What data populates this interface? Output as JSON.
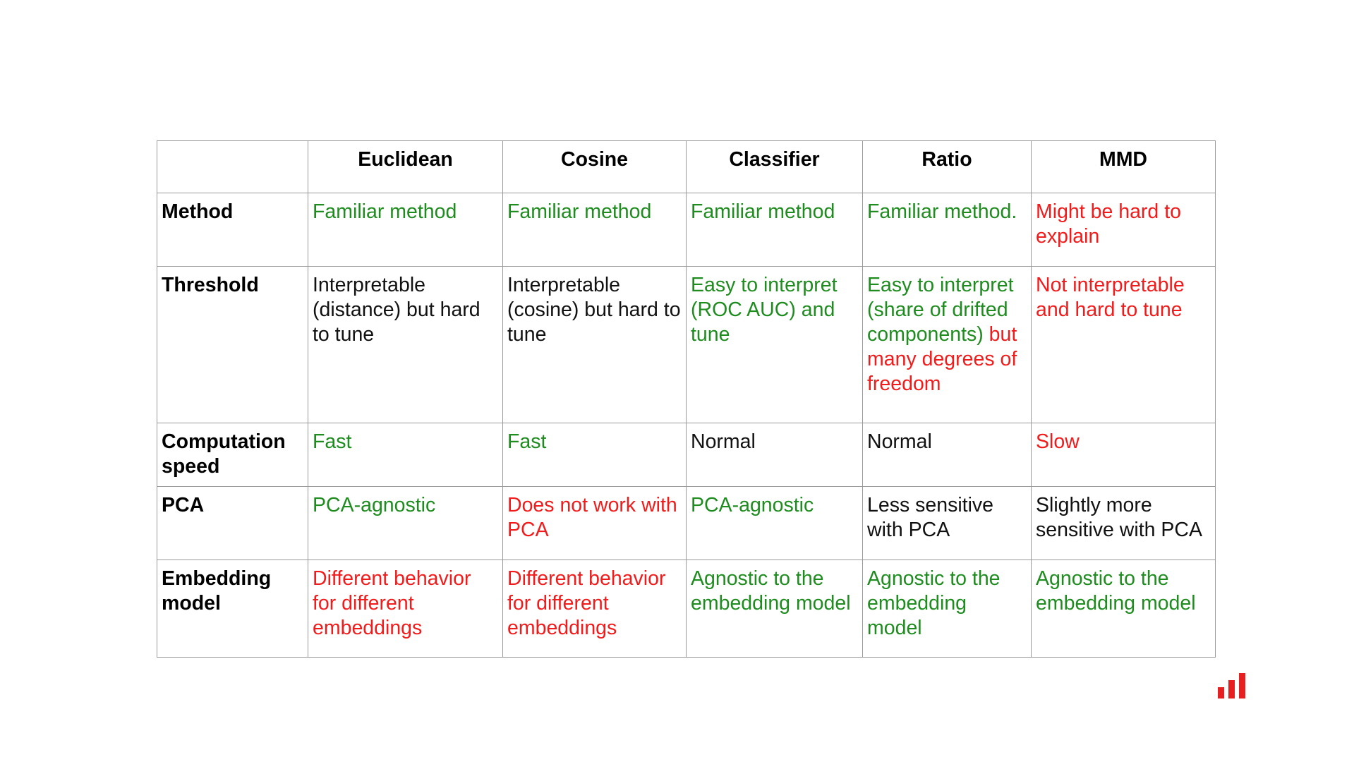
{
  "colors": {
    "positive": "#1e8c1e",
    "negative": "#f21b1b",
    "neutral": "#111111",
    "logo": "#e62020"
  },
  "table": {
    "corner": "",
    "columns": [
      "Euclidean",
      "Cosine",
      "Classifier",
      "Ratio",
      "MMD"
    ],
    "rows": [
      {
        "label": "Method",
        "cells": [
          [
            {
              "text": "Familiar method",
              "tone": "green"
            }
          ],
          [
            {
              "text": "Familiar method",
              "tone": "green"
            }
          ],
          [
            {
              "text": "Familiar method",
              "tone": "green"
            }
          ],
          [
            {
              "text": "Familiar method.",
              "tone": "green"
            }
          ],
          [
            {
              "text": "Might be hard to explain",
              "tone": "red"
            }
          ]
        ]
      },
      {
        "label": "Threshold",
        "cells": [
          [
            {
              "text": "Interpretable (distance) but hard to tune",
              "tone": "black"
            }
          ],
          [
            {
              "text": "Interpretable (cosine) but hard to tune",
              "tone": "black"
            }
          ],
          [
            {
              "text": "Easy to interpret (ROC AUC) and tune",
              "tone": "green"
            }
          ],
          [
            {
              "text": "Easy to interpret (share of drifted components)",
              "tone": "green"
            },
            {
              "text": " but many degrees of freedom",
              "tone": "red"
            }
          ],
          [
            {
              "text": "Not interpretable and hard to tune",
              "tone": "red"
            }
          ]
        ]
      },
      {
        "label": "Computation speed",
        "cells": [
          [
            {
              "text": "Fast",
              "tone": "green"
            }
          ],
          [
            {
              "text": "Fast",
              "tone": "green"
            }
          ],
          [
            {
              "text": "Normal",
              "tone": "black"
            }
          ],
          [
            {
              "text": "Normal",
              "tone": "black"
            }
          ],
          [
            {
              "text": "Slow",
              "tone": "red"
            }
          ]
        ]
      },
      {
        "label": "PCA",
        "cells": [
          [
            {
              "text": "PCA-agnostic",
              "tone": "green"
            }
          ],
          [
            {
              "text": "Does not work with PCA",
              "tone": "red"
            }
          ],
          [
            {
              "text": "PCA-agnostic",
              "tone": "green"
            }
          ],
          [
            {
              "text": "Less sensitive with PCA",
              "tone": "black"
            }
          ],
          [
            {
              "text": "Slightly more sensitive with PCA",
              "tone": "black"
            }
          ]
        ]
      },
      {
        "label": "Embedding model",
        "cells": [
          [
            {
              "text": "Different behavior for different embeddings",
              "tone": "red"
            }
          ],
          [
            {
              "text": "Different behavior for different embeddings",
              "tone": "red"
            }
          ],
          [
            {
              "text": "Agnostic to the embedding model",
              "tone": "green"
            }
          ],
          [
            {
              "text": "Agnostic to the embedding model",
              "tone": "green"
            }
          ],
          [
            {
              "text": "Agnostic to the embedding model",
              "tone": "green"
            }
          ]
        ]
      }
    ]
  },
  "logo": {
    "icon": "bar-chart-logo-icon",
    "bars": [
      0.45,
      0.72,
      1.0
    ]
  }
}
